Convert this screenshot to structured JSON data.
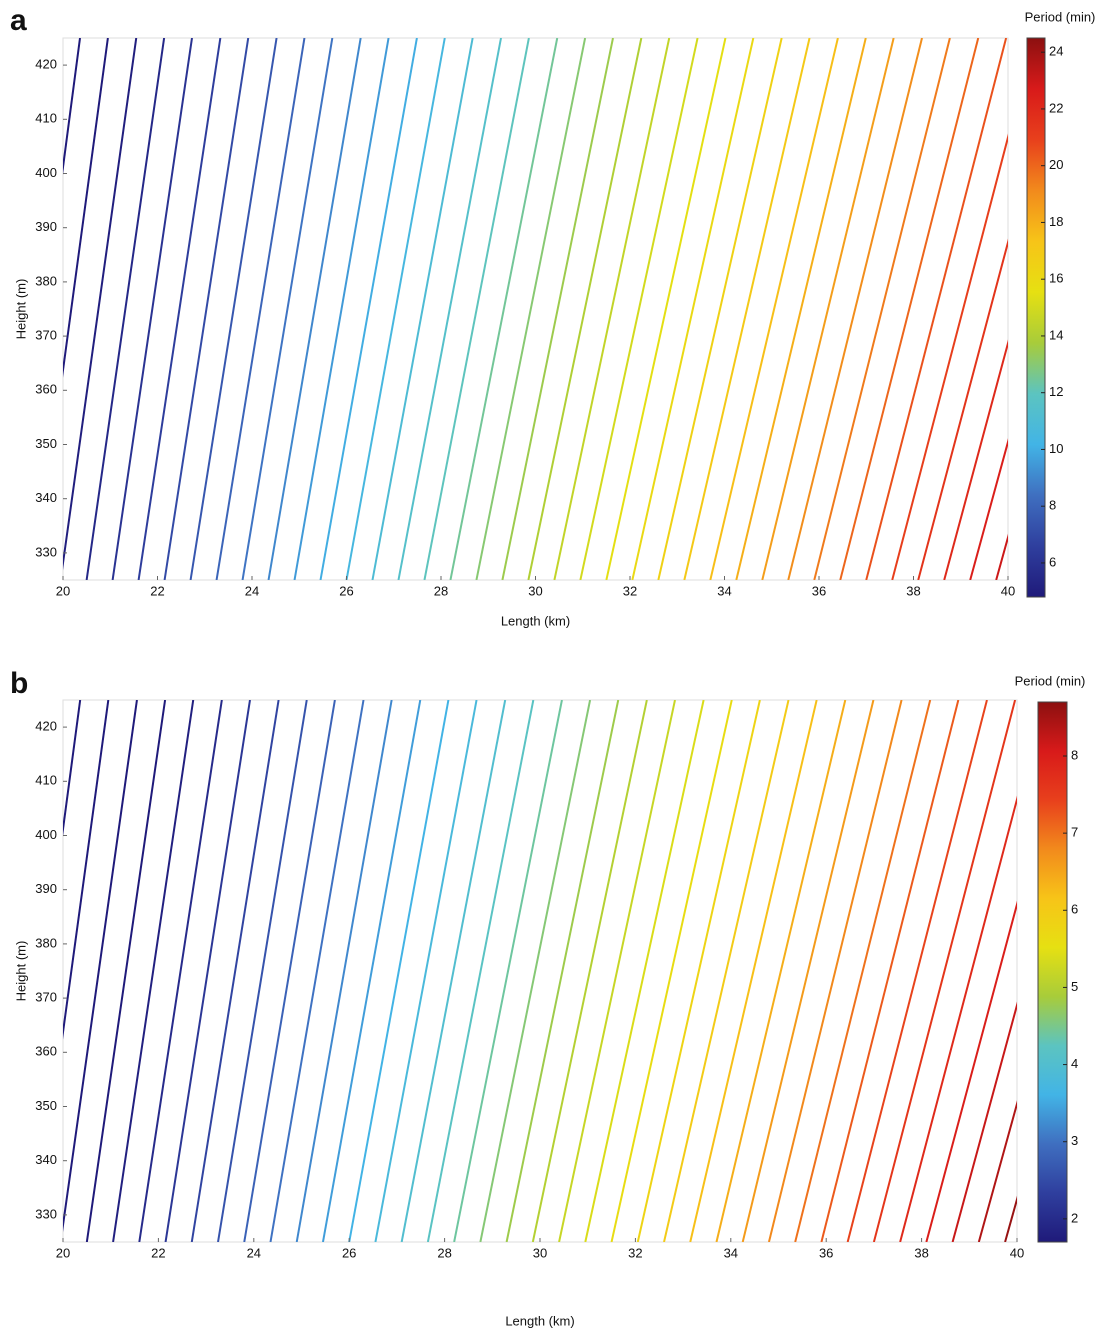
{
  "chart_data": [
    {
      "type": "contour",
      "panel_label": "a",
      "x_label": "Length (km)",
      "y_label": "Height (m)",
      "colorbar_label": "Period (min)",
      "xlim": [
        20,
        40
      ],
      "ylim": [
        325,
        425
      ],
      "xticks": [
        20,
        22,
        24,
        26,
        28,
        30,
        32,
        34,
        36,
        38,
        40
      ],
      "yticks": [
        330,
        340,
        350,
        360,
        370,
        380,
        390,
        400,
        410,
        420
      ],
      "clim": [
        4.8,
        24.5
      ],
      "cticks": [
        6,
        8,
        10,
        12,
        14,
        16,
        18,
        20,
        22,
        24
      ],
      "colormap": [
        "#1f1a7a",
        "#2f3f9e",
        "#3f6fc0",
        "#42b4e6",
        "#5cc4c0",
        "#a8cc3a",
        "#e6e012",
        "#f7c418",
        "#f28a1c",
        "#e8401c",
        "#d81a1a",
        "#8c1010"
      ],
      "lines": {
        "levels": [
          4,
          4.5,
          5,
          5.5,
          6,
          6.5,
          7,
          7.5,
          8,
          8.5,
          9,
          9.5,
          10,
          10.5,
          11,
          11.5,
          12,
          12.5,
          13,
          13.5,
          14,
          14.5,
          15,
          15.5,
          16,
          16.5,
          17,
          17.5,
          18,
          18.5,
          19,
          19.5,
          20,
          20.5,
          21,
          21.5,
          22,
          22.5,
          23,
          23.5,
          24
        ],
        "x_bottom": [
          18.85,
          19.4,
          19.95,
          20.5,
          21.05,
          21.6,
          22.15,
          22.7,
          23.25,
          23.8,
          24.35,
          24.9,
          25.45,
          26.0,
          26.55,
          27.1,
          27.65,
          28.2,
          28.75,
          29.3,
          29.85,
          30.4,
          30.95,
          31.5,
          32.05,
          32.6,
          33.15,
          33.7,
          34.25,
          34.8,
          35.35,
          35.9,
          36.45,
          37.0,
          37.55,
          38.1,
          38.65,
          39.2,
          39.75,
          40.3,
          40.85
        ],
        "x_top": [
          20.36,
          20.95,
          21.55,
          22.14,
          22.73,
          23.33,
          23.92,
          24.52,
          25.11,
          25.7,
          26.3,
          26.89,
          27.49,
          28.08,
          28.67,
          29.27,
          29.86,
          30.46,
          31.05,
          31.64,
          32.24,
          32.83,
          33.43,
          34.02,
          34.61,
          35.21,
          35.8,
          36.4,
          36.99,
          37.58,
          38.18,
          38.77,
          39.37,
          39.96,
          40.55,
          41.15,
          41.74,
          42.34,
          42.93,
          43.52,
          44.12
        ]
      }
    },
    {
      "type": "contour",
      "panel_label": "b",
      "x_label": "Length (km)",
      "y_label": "Height (m)",
      "colorbar_label": "Period (min)",
      "xlim": [
        20,
        40
      ],
      "ylim": [
        325,
        425
      ],
      "xticks": [
        20,
        22,
        24,
        26,
        28,
        30,
        32,
        34,
        36,
        38,
        40
      ],
      "yticks": [
        330,
        340,
        350,
        360,
        370,
        380,
        390,
        400,
        410,
        420
      ],
      "clim": [
        1.7,
        8.7
      ],
      "cticks": [
        2,
        3,
        4,
        5,
        6,
        7,
        8
      ],
      "colormap": [
        "#1f1a7a",
        "#2f3f9e",
        "#3f6fc0",
        "#42b4e6",
        "#5cc4c0",
        "#a8cc3a",
        "#e6e012",
        "#f7c418",
        "#f28a1c",
        "#e8401c",
        "#d81a1a",
        "#8c1010"
      ],
      "lines": {
        "levels": [
          1.0,
          1.2,
          1.4,
          1.6,
          1.8,
          2.0,
          2.2,
          2.4,
          2.6,
          2.8,
          3.0,
          3.2,
          3.4,
          3.6,
          3.8,
          4.0,
          4.2,
          4.4,
          4.6,
          4.8,
          5.0,
          5.2,
          5.4,
          5.6,
          5.8,
          6.0,
          6.2,
          6.4,
          6.6,
          6.8,
          7.0,
          7.2,
          7.4,
          7.6,
          7.8,
          8.0,
          8.2,
          8.4,
          8.6,
          8.8,
          9.0
        ],
        "x_bottom": [
          18.85,
          19.4,
          19.95,
          20.5,
          21.05,
          21.6,
          22.15,
          22.7,
          23.25,
          23.8,
          24.35,
          24.9,
          25.45,
          26.0,
          26.55,
          27.1,
          27.65,
          28.2,
          28.75,
          29.3,
          29.85,
          30.4,
          30.95,
          31.5,
          32.05,
          32.6,
          33.15,
          33.7,
          34.25,
          34.8,
          35.35,
          35.9,
          36.45,
          37.0,
          37.55,
          38.1,
          38.65,
          39.2,
          39.75,
          40.3,
          40.85
        ],
        "x_top": [
          20.36,
          20.95,
          21.55,
          22.14,
          22.73,
          23.33,
          23.92,
          24.52,
          25.11,
          25.7,
          26.3,
          26.89,
          27.49,
          28.08,
          28.67,
          29.27,
          29.86,
          30.46,
          31.05,
          31.64,
          32.24,
          32.83,
          33.43,
          34.02,
          34.61,
          35.21,
          35.8,
          36.4,
          36.99,
          37.58,
          38.18,
          38.77,
          39.37,
          39.96,
          40.55,
          41.15,
          41.74,
          42.34,
          42.93,
          43.52,
          44.12
        ]
      }
    }
  ]
}
